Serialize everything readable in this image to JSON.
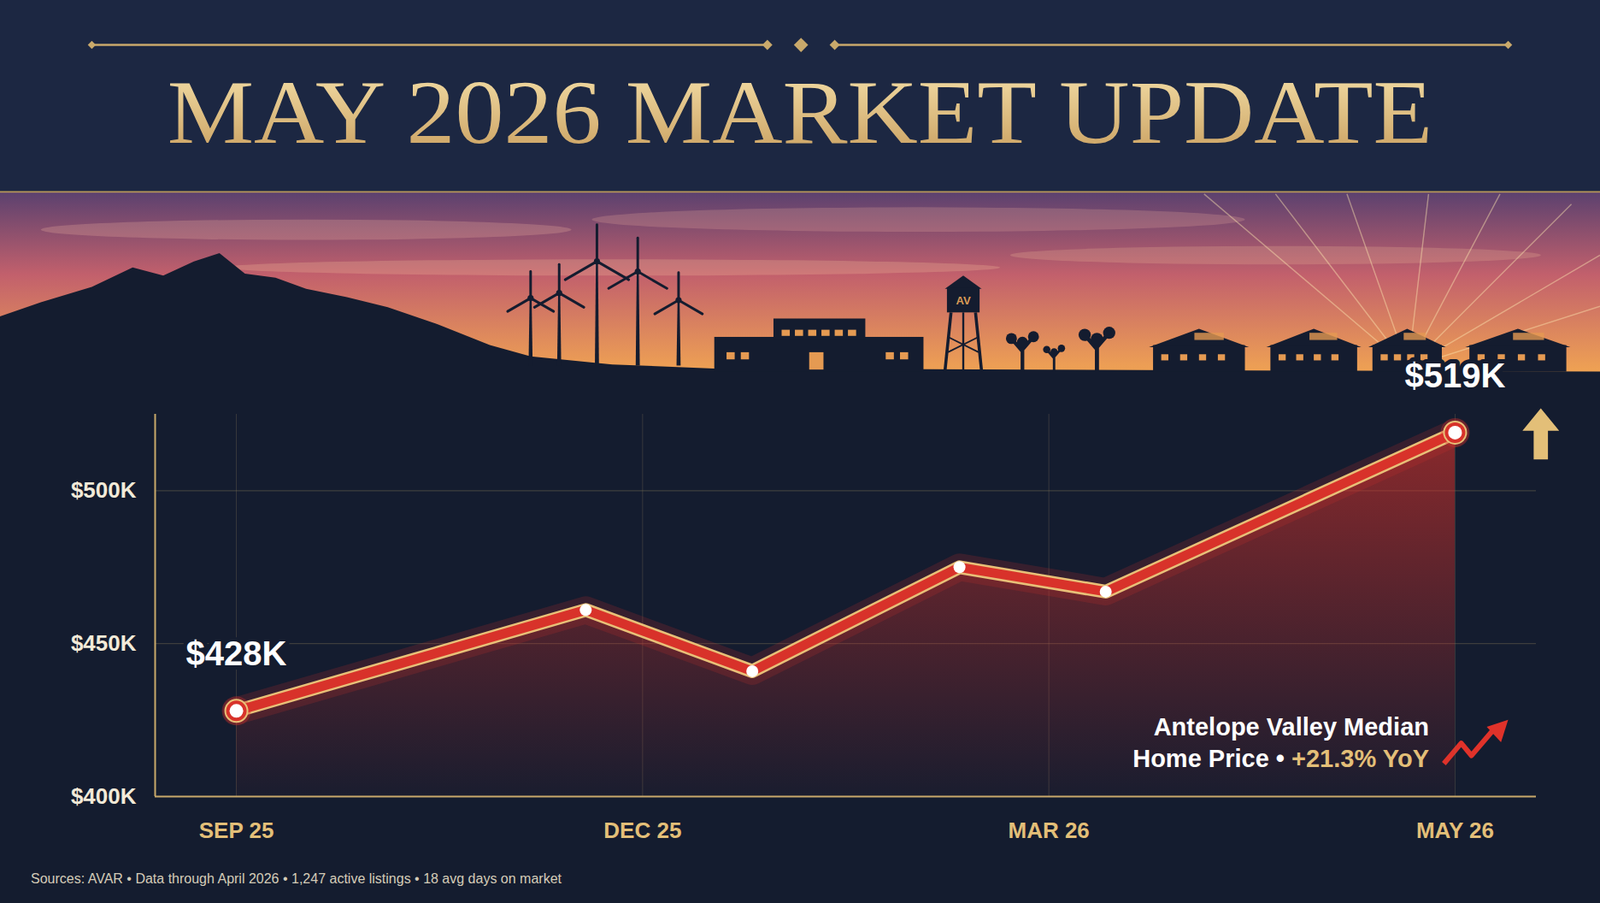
{
  "chart_data": {
    "type": "line",
    "title": "MAY 2026 MARKET UPDATE",
    "x": [
      0,
      0.86,
      1.27,
      1.78,
      2.14,
      3
    ],
    "xlim": [
      -0.2,
      3.2
    ],
    "xticks": [
      {
        "value": 0,
        "label": "SEP 25"
      },
      {
        "value": 1,
        "label": "DEC 25"
      },
      {
        "value": 2,
        "label": "MAR 26"
      },
      {
        "value": 3,
        "label": "MAY 26"
      }
    ],
    "values": [
      428,
      461,
      441,
      475,
      467,
      519
    ],
    "value_labels": [
      "$428K",
      null,
      null,
      null,
      null,
      "$519K"
    ],
    "data_labels": true,
    "color": "#d8322a",
    "marker": "circle",
    "ylim": [
      400,
      525
    ],
    "yticks": [
      {
        "value": 400,
        "label": "$400K"
      },
      {
        "value": 450,
        "label": "$450K"
      },
      {
        "value": 500,
        "label": "$500K"
      }
    ],
    "grid": true,
    "annotation": {
      "text": "Antelope Valley Median Home Price •",
      "change": "+21.3% YoY"
    },
    "source": "Sources: AVAR • Data through April 2026 • 1,247 active listings • 18 avg days on market",
    "tower_label": "AV"
  }
}
